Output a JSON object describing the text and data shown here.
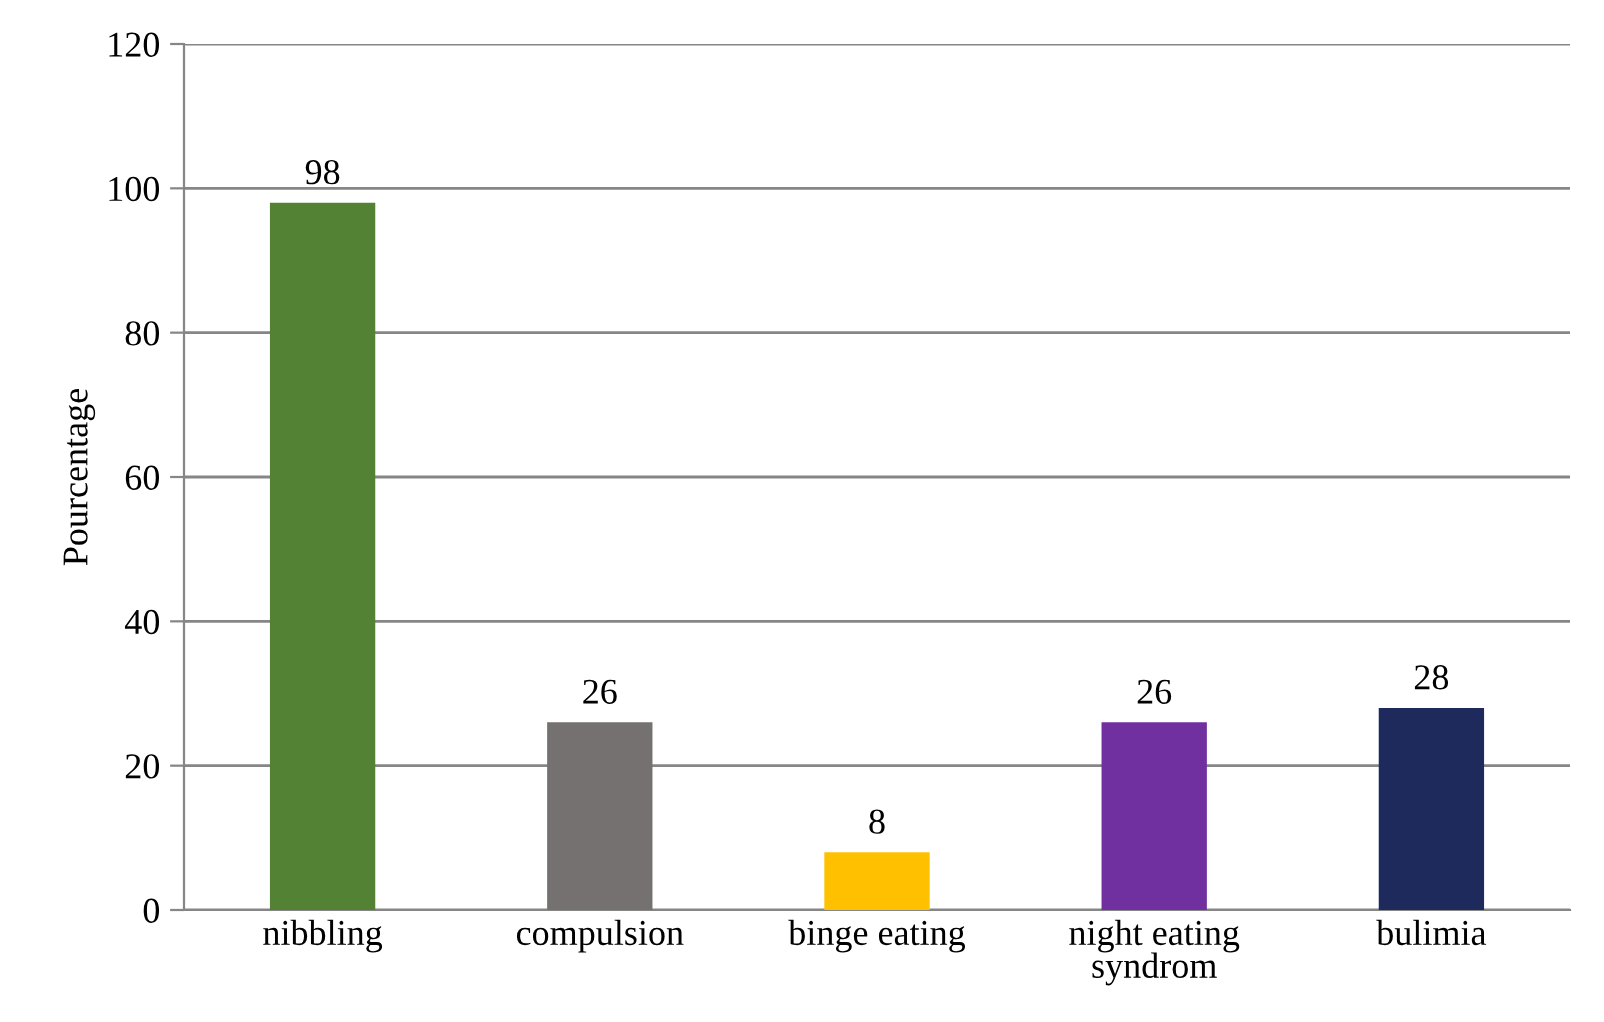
{
  "chart_data": {
    "type": "bar",
    "ylabel": "Pourcentage",
    "categories": [
      "nibbling",
      "compulsion",
      "binge eating",
      "night eating syndrom",
      "bulimia"
    ],
    "values": [
      98,
      26,
      8,
      26,
      28
    ],
    "colors": [
      "#548235",
      "#767171",
      "#ffc000",
      "#7030a0",
      "#1f2a5c"
    ],
    "ylim": [
      0,
      120
    ],
    "yticks": [
      0,
      20,
      40,
      60,
      80,
      100,
      120
    ],
    "grid": "y",
    "data_labels": true
  }
}
